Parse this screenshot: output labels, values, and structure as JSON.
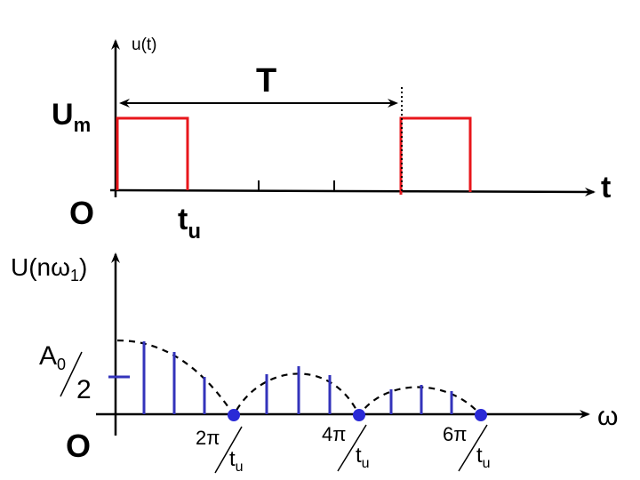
{
  "top_plot": {
    "y_axis_label": "u(t)",
    "x_axis_label": "t",
    "amplitude_label": "U",
    "amplitude_sub": "m",
    "origin_label": "O",
    "period_label": "T",
    "pulse_width_label": "t",
    "pulse_width_sub": "u",
    "pulse_color": "#e8161b"
  },
  "bottom_plot": {
    "y_axis_label_main": "U(nω",
    "y_axis_label_sub": "1",
    "y_axis_label_close": ")",
    "x_axis_label": "ω",
    "origin_label": "O",
    "a0_label": "A",
    "a0_sub": "0",
    "a0_denominator": "2",
    "zero_marks": [
      {
        "numerator": "2π",
        "denominator": "t",
        "denominator_sub": "u"
      },
      {
        "numerator": "4π",
        "denominator": "t",
        "denominator_sub": "u"
      },
      {
        "numerator": "6π",
        "denominator": "t",
        "denominator_sub": "u"
      }
    ],
    "line_color": "#3333bb",
    "dot_color": "#2a2ad6",
    "envelope": "dashed"
  }
}
